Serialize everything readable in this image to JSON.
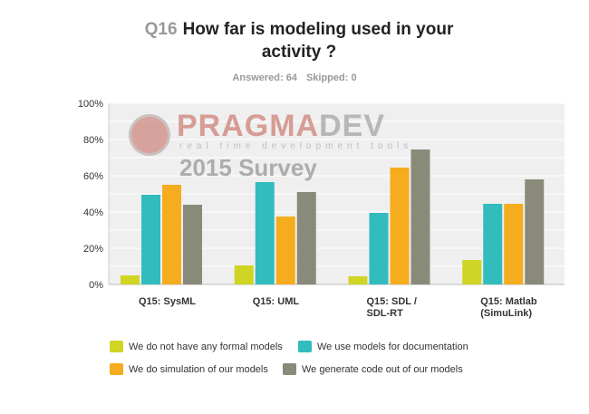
{
  "title": {
    "q": "Q16",
    "text": "How far is modeling used in your activity ?"
  },
  "stats": {
    "answered": "Answered: 64",
    "skipped": "Skipped: 0"
  },
  "watermark": {
    "brand1": "PRAGMA",
    "brand2": "DEV",
    "tagline": "real time development tools",
    "survey": "2015 Survey"
  },
  "chart_data": {
    "type": "bar",
    "title": "Q16 How far is modeling used in your activity ?",
    "categories": [
      "Q15: SysML",
      "Q15: UML",
      "Q15: SDL /\nSDL-RT",
      "Q15: Matlab\n(SimuLink)"
    ],
    "yticks": [
      "0%",
      "20%",
      "40%",
      "60%",
      "80%",
      "100%"
    ],
    "ylim": [
      0,
      100
    ],
    "grid": true,
    "legend_placement": "bottom",
    "series": [
      {
        "name": "We do not have any formal models",
        "color": "#d0d424",
        "values": [
          5,
          10.5,
          4.5,
          13.5
        ]
      },
      {
        "name": "We use models for documentation",
        "color": "#32bcbd",
        "values": [
          49.5,
          56.5,
          39.5,
          44.5
        ]
      },
      {
        "name": "We do simulation of our models",
        "color": "#f5ac1e",
        "values": [
          55,
          37.5,
          64.5,
          44.5
        ]
      },
      {
        "name": "We generate code out of our models",
        "color": "#8a8a7a",
        "values": [
          44,
          51,
          74.5,
          58
        ]
      }
    ]
  }
}
